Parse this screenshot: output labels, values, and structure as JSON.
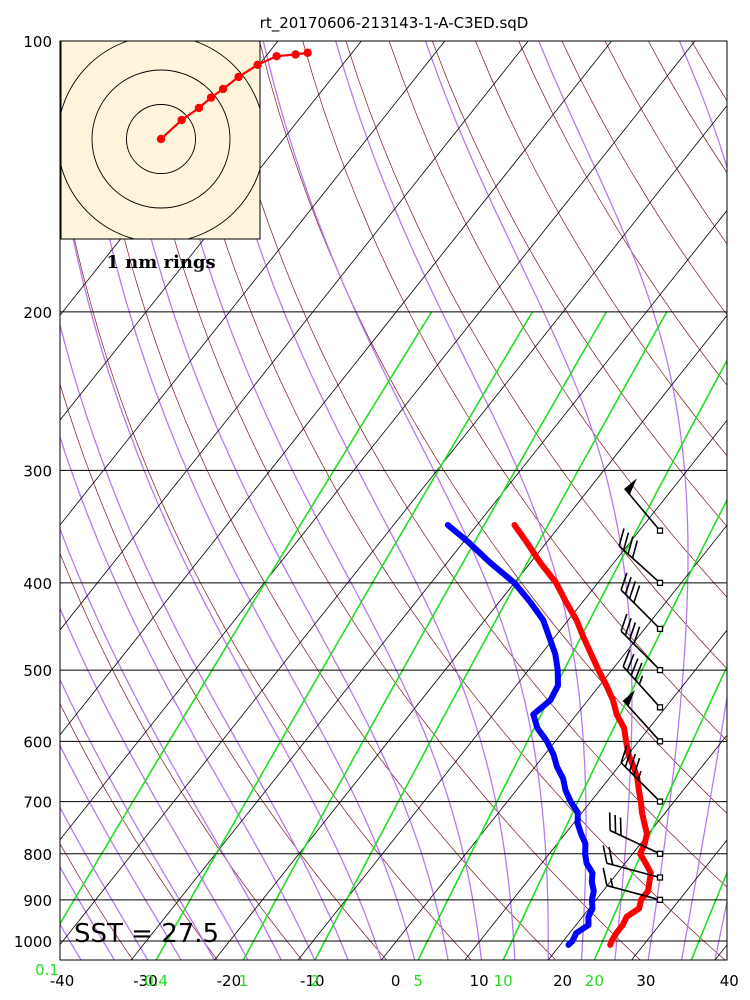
{
  "chart_data": {
    "type": "skew-t",
    "title": "rt_20170606-213143-1-A-C3ED.sqD",
    "pressure_ticks": [
      "100",
      "200",
      "300",
      "400",
      "500",
      "600",
      "700",
      "800",
      "900",
      "1000"
    ],
    "temperature_ticks": [
      "-40",
      "-30",
      "-20",
      "-10",
      "0",
      "10",
      "20",
      "30",
      "40"
    ],
    "mixing_ratio_labels": [
      "0.1",
      "0.4",
      "1",
      "2",
      "5",
      "10",
      "20"
    ],
    "xlim": [
      -40,
      40
    ],
    "ylim": [
      1050,
      100
    ],
    "annotation": "SST = 27.5",
    "hodograph_label": "1 nm rings",
    "colors": {
      "temperature": "#ff0000",
      "dewpoint": "#0000ff",
      "dry_adiabats": "#7a1a1a",
      "moist_adiabats": "#b57bee",
      "mixing_ratio": "#22dd22",
      "isotherms": "#000000",
      "hodograph_bg": "#fff5dc"
    },
    "series": [
      {
        "name": "Temperature",
        "points": [
          [
            1010,
            26
          ],
          [
            1000,
            25.8
          ],
          [
            980,
            25.6
          ],
          [
            960,
            25.6
          ],
          [
            940,
            25.3
          ],
          [
            920,
            26
          ],
          [
            900,
            25.4
          ],
          [
            880,
            25.4
          ],
          [
            860,
            24.7
          ],
          [
            840,
            24
          ],
          [
            820,
            22.5
          ],
          [
            800,
            20.9
          ],
          [
            780,
            20.5
          ],
          [
            760,
            19.8
          ],
          [
            740,
            18.5
          ],
          [
            720,
            17.2
          ],
          [
            700,
            16
          ],
          [
            680,
            14.7
          ],
          [
            660,
            13.4
          ],
          [
            640,
            11.8
          ],
          [
            620,
            10
          ],
          [
            600,
            8.5
          ],
          [
            580,
            7
          ],
          [
            560,
            4.8
          ],
          [
            540,
            3
          ],
          [
            520,
            0.8
          ],
          [
            500,
            -1.6
          ],
          [
            480,
            -4
          ],
          [
            460,
            -6.5
          ],
          [
            440,
            -9
          ],
          [
            420,
            -12
          ],
          [
            400,
            -15
          ],
          [
            380,
            -18.8
          ],
          [
            360,
            -22.5
          ],
          [
            345,
            -25.5
          ]
        ]
      },
      {
        "name": "Dewpoint",
        "points": [
          [
            1010,
            21
          ],
          [
            1000,
            21.1
          ],
          [
            980,
            20.8
          ],
          [
            960,
            21.5
          ],
          [
            940,
            20.7
          ],
          [
            920,
            20.4
          ],
          [
            900,
            19.5
          ],
          [
            880,
            18.9
          ],
          [
            860,
            17.8
          ],
          [
            840,
            17
          ],
          [
            820,
            15.4
          ],
          [
            800,
            14.3
          ],
          [
            780,
            13.4
          ],
          [
            760,
            11.9
          ],
          [
            740,
            10.5
          ],
          [
            720,
            9.5
          ],
          [
            700,
            7.6
          ],
          [
            680,
            5.9
          ],
          [
            660,
            4.5
          ],
          [
            640,
            2.6
          ],
          [
            620,
            1
          ],
          [
            600,
            -1
          ],
          [
            580,
            -3.4
          ],
          [
            560,
            -5.2
          ],
          [
            540,
            -4.5
          ],
          [
            520,
            -5
          ],
          [
            500,
            -6.5
          ],
          [
            480,
            -8.3
          ],
          [
            460,
            -10.6
          ],
          [
            440,
            -13
          ],
          [
            420,
            -16.3
          ],
          [
            400,
            -20
          ],
          [
            380,
            -24.8
          ],
          [
            360,
            -29.5
          ],
          [
            345,
            -33.5
          ]
        ]
      }
    ],
    "winds": [
      {
        "pressure": 900,
        "dir": 285,
        "speed": 15
      },
      {
        "pressure": 850,
        "dir": 285,
        "speed": 20
      },
      {
        "pressure": 800,
        "dir": 295,
        "speed": 30
      },
      {
        "pressure": 700,
        "dir": 315,
        "speed": 45
      },
      {
        "pressure": 600,
        "dir": 318,
        "speed": 50
      },
      {
        "pressure": 550,
        "dir": 318,
        "speed": 45
      },
      {
        "pressure": 500,
        "dir": 315,
        "speed": 40
      },
      {
        "pressure": 450,
        "dir": 315,
        "speed": 40
      },
      {
        "pressure": 400,
        "dir": 312,
        "speed": 40
      },
      {
        "pressure": 350,
        "dir": 320,
        "speed": 50
      }
    ],
    "hodograph_points": [
      [
        0,
        0
      ],
      [
        0.6,
        0.55
      ],
      [
        1.1,
        0.9
      ],
      [
        1.45,
        1.2
      ],
      [
        1.8,
        1.45
      ],
      [
        2.25,
        1.8
      ],
      [
        2.8,
        2.15
      ],
      [
        3.35,
        2.4
      ],
      [
        3.9,
        2.45
      ],
      [
        4.25,
        2.5
      ]
    ],
    "hodograph_rings": [
      1,
      2,
      3
    ]
  }
}
